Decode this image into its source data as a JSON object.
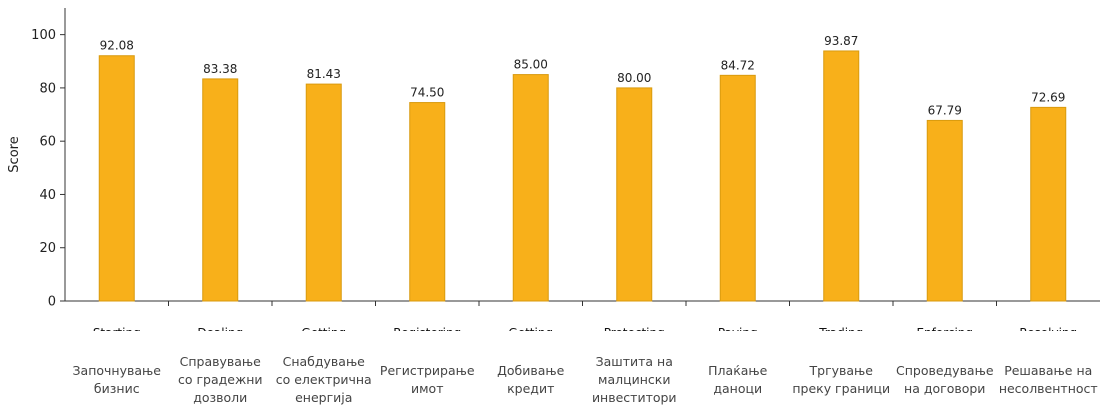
{
  "chart_data": {
    "type": "bar",
    "title": "",
    "xlabel": "",
    "ylabel": "Score",
    "ylim": [
      0,
      110
    ],
    "yticks": [
      0,
      20,
      40,
      60,
      80,
      100
    ],
    "bar_color": "#f8b01a",
    "bar_edge_color": "#d99a0e",
    "truncated_labels": [
      "Starting",
      "Dealing",
      "Getting",
      "Registering",
      "Getting",
      "Protecting",
      "Paying",
      "Trading",
      "Enforcing",
      "Resolving"
    ],
    "categories": [
      "Започнување бизнис",
      "Справување со градежни дозволи",
      "Снабдување со електрична енергија",
      "Регистрирање имот",
      "Добивање кредит",
      "Заштита на малцински инвеститори",
      "Плаќање даноци",
      "Тргување преку граници",
      "Спроведување на договори",
      "Решавање на несолвентност"
    ],
    "category_lines": [
      [
        "Започнување",
        "бизнис"
      ],
      [
        "Справување",
        "со градежни",
        "дозволи"
      ],
      [
        "Снабдување",
        "со електрична",
        "енергија"
      ],
      [
        "Регистрирање",
        "имот"
      ],
      [
        "Добивање",
        "кредит"
      ],
      [
        "Заштита на",
        "малцински",
        "инвеститори"
      ],
      [
        "Плаќање",
        "даноци"
      ],
      [
        "Тргување",
        "преку граници"
      ],
      [
        "Спроведување",
        "на договори"
      ],
      [
        "Решавање на",
        "несолвентност"
      ]
    ],
    "values": [
      92.08,
      83.38,
      81.43,
      74.5,
      85.0,
      80.0,
      84.72,
      93.87,
      67.79,
      72.69
    ],
    "value_labels": [
      "92.08",
      "83.38",
      "81.43",
      "74.50",
      "85.00",
      "80.00",
      "84.72",
      "93.87",
      "67.79",
      "72.69"
    ],
    "grid": false
  }
}
